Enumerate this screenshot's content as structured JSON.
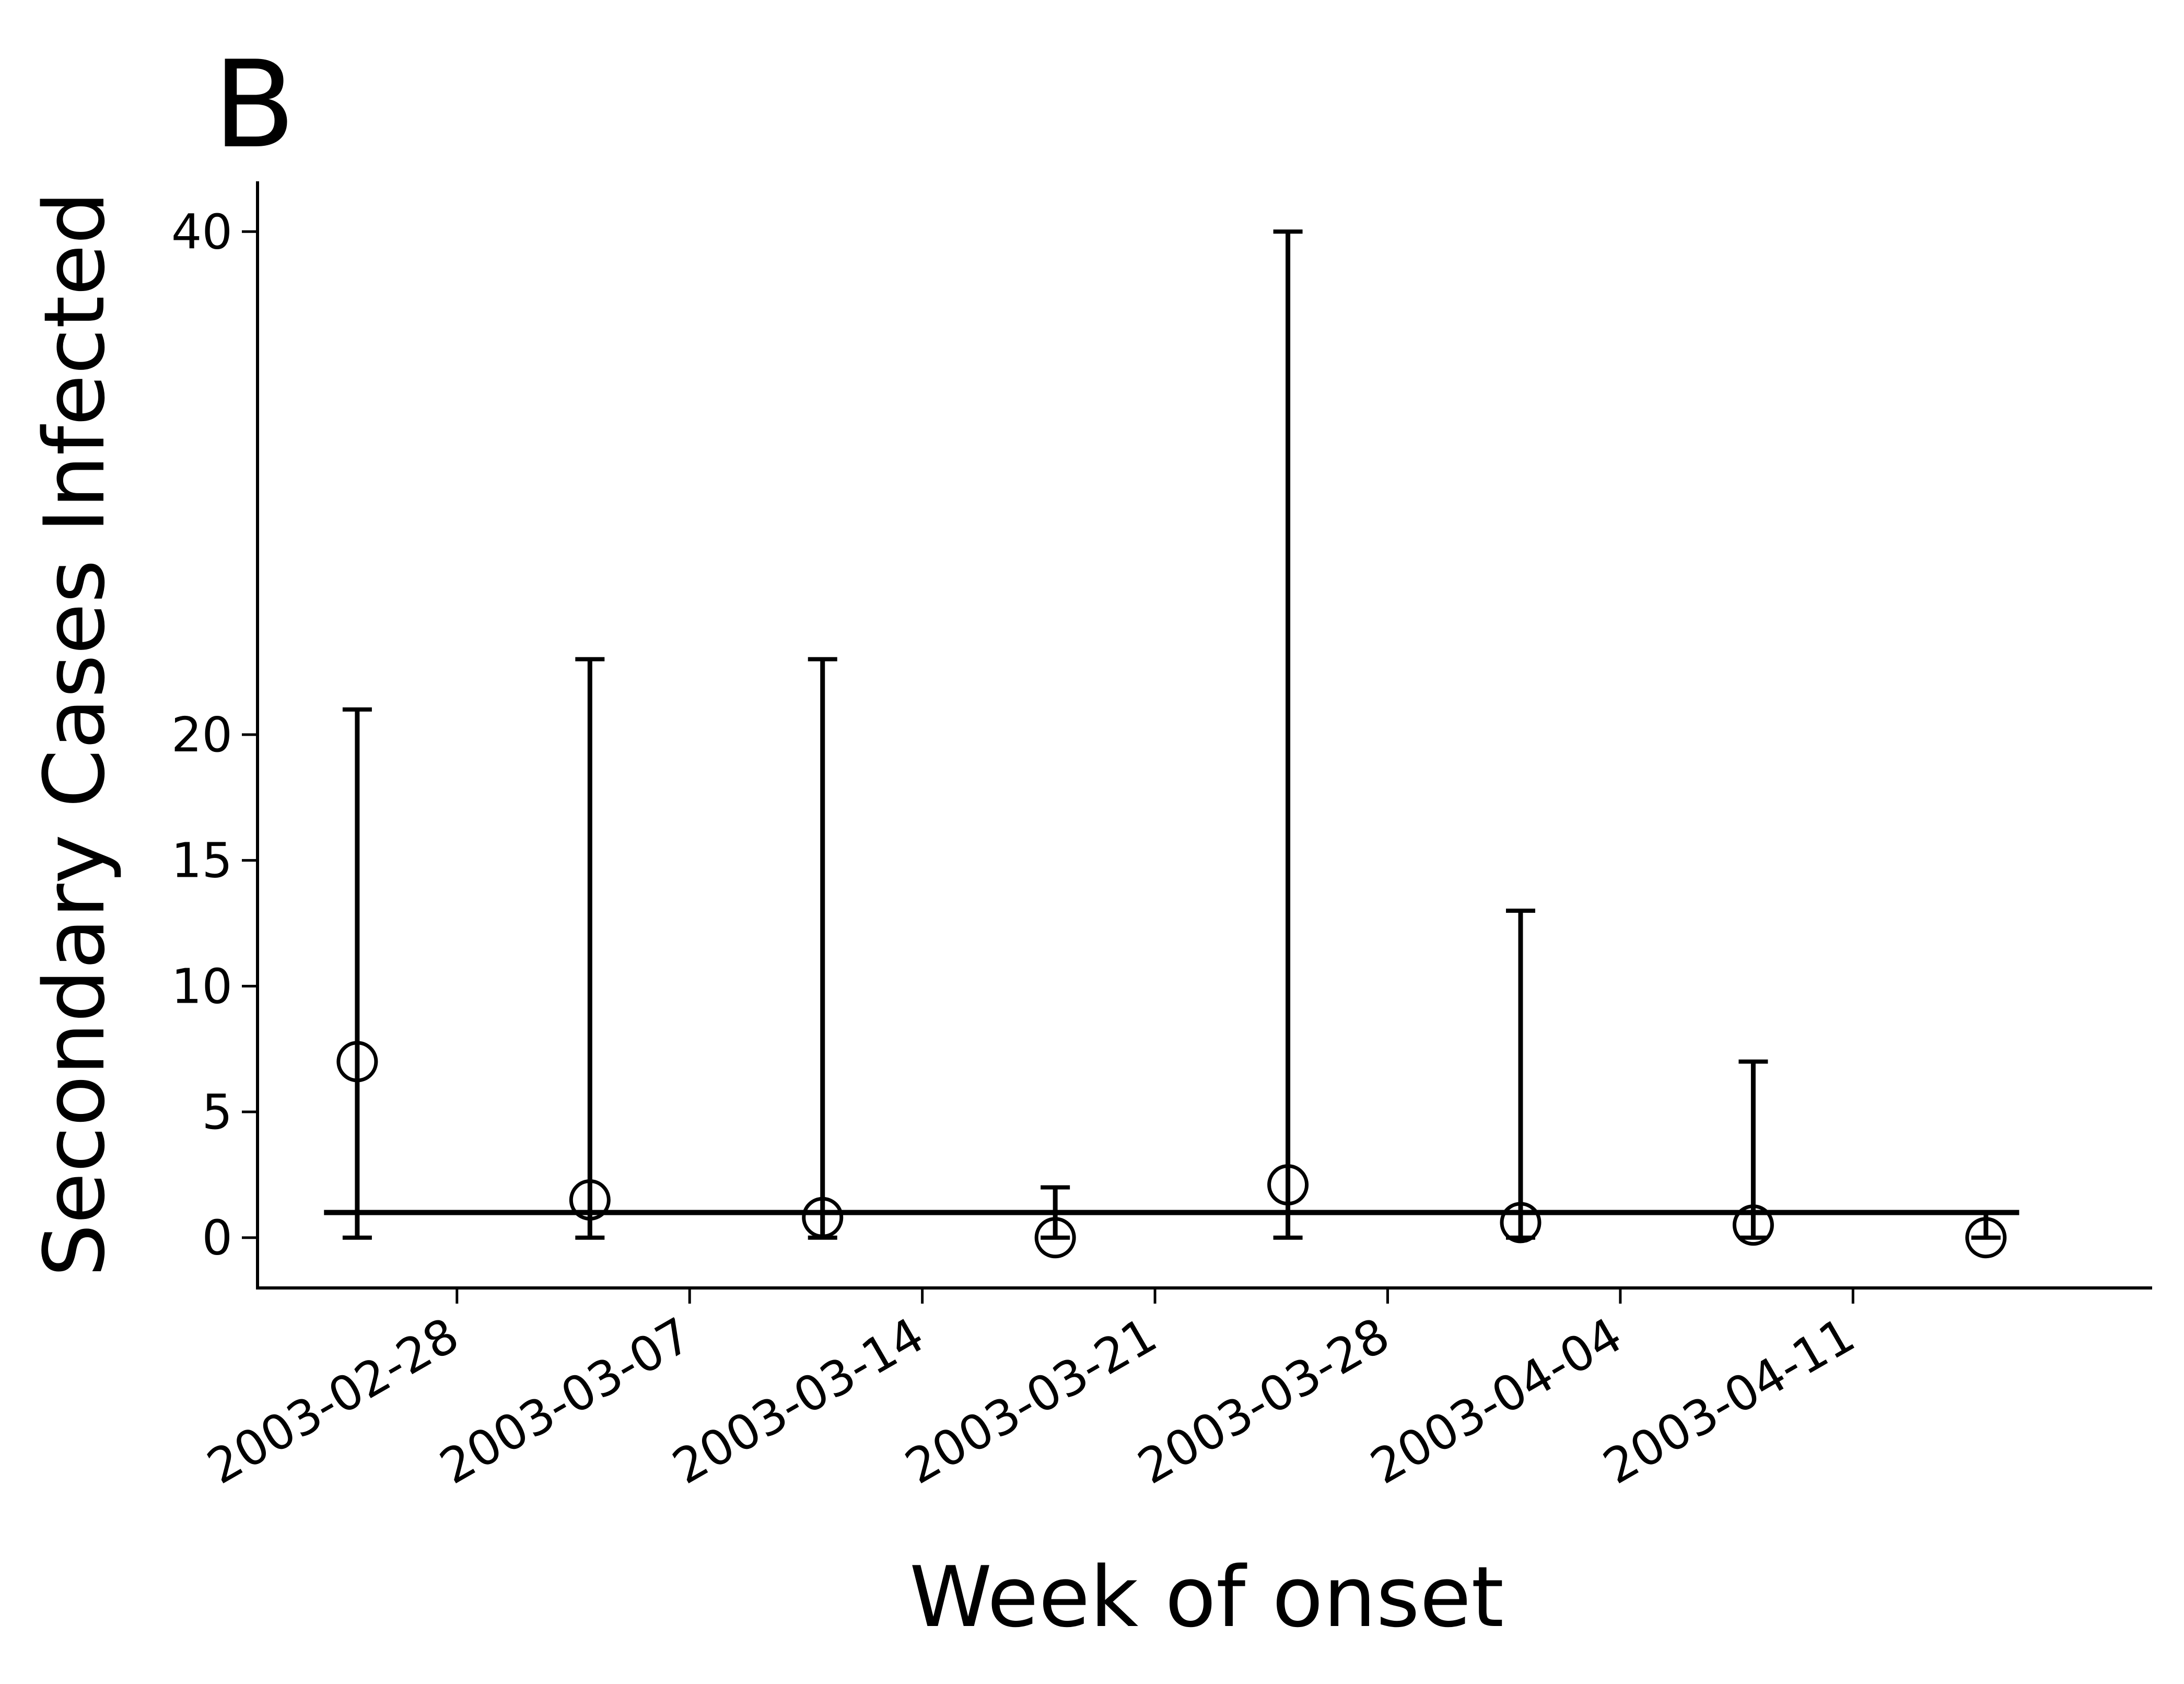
{
  "panel_label": "B",
  "chart_data": {
    "type": "scatter",
    "xlabel": "Week of onset",
    "ylabel": "Secondary Cases Infected",
    "x_ticks": [
      "2003-02-28",
      "2003-03-07",
      "2003-03-14",
      "2003-03-21",
      "2003-03-28",
      "2003-04-04",
      "2003-04-11"
    ],
    "y_ticks": [
      0,
      5,
      10,
      15,
      20,
      40
    ],
    "xlim": [
      "2003-02-22",
      "2003-04-20"
    ],
    "ylim": [
      -2,
      42
    ],
    "reference_line": {
      "y": 1,
      "x_range": [
        "2003-02-24",
        "2003-04-16"
      ]
    },
    "points": [
      {
        "x": "2003-02-25",
        "y": 7.0,
        "ci_low": 0,
        "ci_high": 21
      },
      {
        "x": "2003-03-04",
        "y": 1.5,
        "ci_low": 0,
        "ci_high": 23
      },
      {
        "x": "2003-03-11",
        "y": 0.8,
        "ci_low": 0,
        "ci_high": 23
      },
      {
        "x": "2003-03-18",
        "y": 0.0,
        "ci_low": 0,
        "ci_high": 2
      },
      {
        "x": "2003-03-25",
        "y": 2.1,
        "ci_low": 0,
        "ci_high": 40
      },
      {
        "x": "2003-04-01",
        "y": 0.6,
        "ci_low": 0,
        "ci_high": 13
      },
      {
        "x": "2003-04-08",
        "y": 0.5,
        "ci_low": 0,
        "ci_high": 7
      },
      {
        "x": "2003-04-15",
        "y": 0.0,
        "ci_low": 0,
        "ci_high": 1
      }
    ],
    "grid": false,
    "marker": "open-circle",
    "color": "#000000"
  }
}
